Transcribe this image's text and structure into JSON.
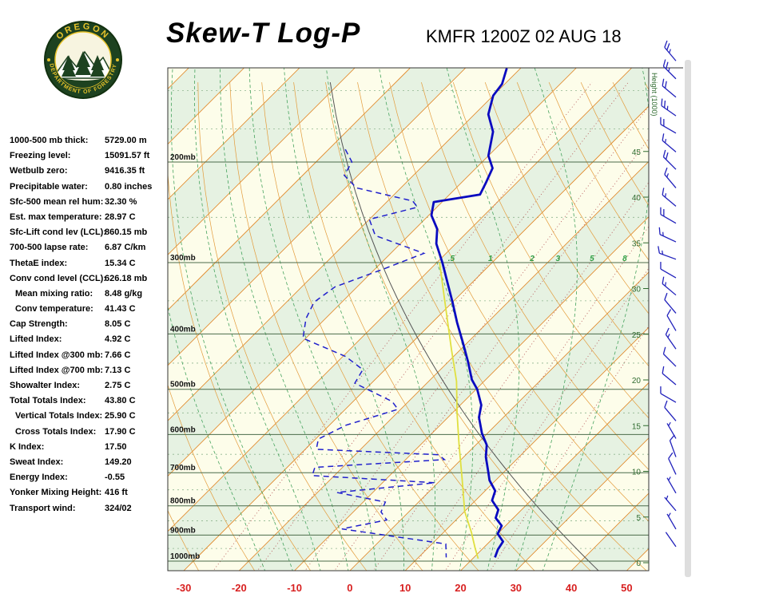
{
  "header": {
    "title": "Skew-T Log-P",
    "station_line": "KMFR 1200Z 02 AUG 18",
    "logo_text_top": "OREGON",
    "logo_text_bottom": "DEPARTMENT OF FORESTRY"
  },
  "indices": [
    {
      "label": "1000-500 mb thick:",
      "value": "5729.00 m",
      "indent": 0
    },
    {
      "label": "Freezing level:",
      "value": "15091.57 ft",
      "indent": 0
    },
    {
      "label": "Wetbulb zero:",
      "value": "9416.35 ft",
      "indent": 0
    },
    {
      "label": "Precipitable water:",
      "value": "0.80 inches",
      "indent": 0
    },
    {
      "label": "Sfc-500 mean rel hum:",
      "value": "32.30 %",
      "indent": 0
    },
    {
      "label": "Est. max temperature:",
      "value": "28.97 C",
      "indent": 0
    },
    {
      "label": "Sfc-Lift cond lev (LCL):",
      "value": "860.15 mb",
      "indent": 0
    },
    {
      "label": "700-500 lapse rate:",
      "value": "6.87 C/km",
      "indent": 0
    },
    {
      "label": "ThetaE index:",
      "value": "15.34 C",
      "indent": 0
    },
    {
      "label": "Conv cond level (CCL):",
      "value": "626.18 mb",
      "indent": 0
    },
    {
      "label": "Mean mixing ratio:",
      "value": "8.48 g/kg",
      "indent": 1
    },
    {
      "label": "Conv temperature:",
      "value": "41.43 C",
      "indent": 1
    },
    {
      "label": "Cap Strength:",
      "value": "8.05 C",
      "indent": 0
    },
    {
      "label": "Lifted Index:",
      "value": "4.92 C",
      "indent": 0
    },
    {
      "label": "Lifted Index @300 mb:",
      "value": "7.66 C",
      "indent": 0
    },
    {
      "label": "Lifted Index @700 mb:",
      "value": "7.13 C",
      "indent": 0
    },
    {
      "label": "Showalter Index:",
      "value": "2.75 C",
      "indent": 0
    },
    {
      "label": "Total Totals Index:",
      "value": "43.80 C",
      "indent": 0
    },
    {
      "label": "Vertical Totals Index:",
      "value": "25.90 C",
      "indent": 1
    },
    {
      "label": "Cross Totals Index:",
      "value": "17.90 C",
      "indent": 1
    },
    {
      "label": "K Index:",
      "value": "17.50",
      "indent": 0
    },
    {
      "label": "Sweat Index:",
      "value": "149.20",
      "indent": 0
    },
    {
      "label": "Energy Index:",
      "value": "-0.55",
      "indent": 0
    },
    {
      "label": "Yonker Mixing Height:",
      "value": "416 ft",
      "indent": 0
    },
    {
      "label": "Transport wind:",
      "value": "324/02",
      "indent": 0
    }
  ],
  "chart_data": {
    "type": "line",
    "subtype": "skew-t log-p atmospheric sounding",
    "station": "KMFR",
    "valid_time": "1200Z 02 AUG 18",
    "pressure_axis_mb": [
      200,
      300,
      400,
      500,
      600,
      700,
      800,
      900,
      1000
    ],
    "pressure_labels": [
      "200mb",
      "300mb",
      "400mb",
      "500mb",
      "600mb",
      "700mb",
      "800mb",
      "900mb",
      "1000mb"
    ],
    "minor_pressure_mb": [
      150,
      175,
      250,
      350,
      450,
      550,
      650,
      750,
      850,
      950
    ],
    "temp_axis_c": [
      -30,
      -20,
      -10,
      0,
      10,
      20,
      30,
      40,
      50
    ],
    "height_axis": {
      "title": "Height (1000)",
      "unit": "kft",
      "ticks": [
        0,
        5,
        10,
        15,
        20,
        25,
        30,
        35,
        40,
        45
      ]
    },
    "mixing_ratio_lines_gkg": [
      0.5,
      1,
      2,
      3,
      5,
      8,
      12,
      20
    ],
    "mixing_ratio_labels": [
      ".5",
      "1",
      "2",
      "3",
      "5",
      "8"
    ],
    "mixing_label_values": [
      0.5,
      1,
      2,
      3,
      5,
      8
    ],
    "isotherm_range_c": [
      -140,
      60
    ],
    "isotherm_step_c": 10,
    "dry_adiabat_range_c": [
      -40,
      140
    ],
    "dry_adiabat_step_c": 10,
    "moist_adiabats_c": [
      -15,
      -10,
      -5,
      0,
      5,
      10,
      15,
      20,
      25,
      30,
      35
    ],
    "conv_temp_adiabat_c": 41.43,
    "temperature_profile_p_t": [
      [
        137,
        -62.5
      ],
      [
        146,
        -60.5
      ],
      [
        153,
        -60.0
      ],
      [
        165,
        -57.5
      ],
      [
        177,
        -53.5
      ],
      [
        195,
        -50.0
      ],
      [
        205,
        -47.0
      ],
      [
        218,
        -45.5
      ],
      [
        228,
        -44.5
      ],
      [
        235,
        -51.5
      ],
      [
        248,
        -49.5
      ],
      [
        262,
        -46.0
      ],
      [
        278,
        -43.5
      ],
      [
        300,
        -39.0
      ],
      [
        325,
        -34.5
      ],
      [
        352,
        -30.0
      ],
      [
        382,
        -25.5
      ],
      [
        413,
        -21.0
      ],
      [
        447,
        -16.5
      ],
      [
        481,
        -12.5
      ],
      [
        500,
        -9.8
      ],
      [
        533,
        -6.2
      ],
      [
        560,
        -4.4
      ],
      [
        597,
        -1.0
      ],
      [
        626,
        2.0
      ],
      [
        657,
        4.0
      ],
      [
        700,
        7.3
      ],
      [
        722,
        8.9
      ],
      [
        753,
        11.8
      ],
      [
        783,
        13.0
      ],
      [
        813,
        15.8
      ],
      [
        840,
        16.8
      ],
      [
        867,
        19.3
      ],
      [
        895,
        20.0
      ],
      [
        924,
        22.4
      ],
      [
        954,
        22.9
      ],
      [
        985,
        23.8
      ]
    ],
    "dewpoint_profile_p_t": [
      [
        190,
        -77.0
      ],
      [
        200,
        -73.5
      ],
      [
        211,
        -72.5
      ],
      [
        222,
        -68.0
      ],
      [
        234,
        -55.5
      ],
      [
        240,
        -53.5
      ],
      [
        252,
        -60.0
      ],
      [
        269,
        -56.0
      ],
      [
        289,
        -44.0
      ],
      [
        308,
        -48.5
      ],
      [
        331,
        -54.0
      ],
      [
        352,
        -55.0
      ],
      [
        376,
        -53.5
      ],
      [
        407,
        -50.5
      ],
      [
        438,
        -39.5
      ],
      [
        462,
        -34.0
      ],
      [
        488,
        -33.0
      ],
      [
        525,
        -23.0
      ],
      [
        542,
        -20.5
      ],
      [
        578,
        -27.0
      ],
      [
        611,
        -29.5
      ],
      [
        637,
        -28.0
      ],
      [
        651,
        -5.0
      ],
      [
        664,
        -3.0
      ],
      [
        685,
        -25.0
      ],
      [
        708,
        -24.0
      ],
      [
        729,
        -0.5
      ],
      [
        758,
        -16.5
      ],
      [
        788,
        -6.0
      ],
      [
        820,
        -5.0
      ],
      [
        847,
        -2.5
      ],
      [
        878,
        -9.0
      ],
      [
        933,
        12.5
      ],
      [
        985,
        15.0
      ]
    ],
    "parcel_trace_p_t": [
      [
        300,
        -39.5
      ],
      [
        331,
        -34.5
      ],
      [
        376,
        -28.0
      ],
      [
        427,
        -21.5
      ],
      [
        484,
        -15.0
      ],
      [
        552,
        -9.0
      ],
      [
        626,
        -3.0
      ],
      [
        715,
        3.5
      ],
      [
        818,
        10.0
      ],
      [
        890,
        15.0
      ],
      [
        948,
        18.5
      ],
      [
        990,
        21.0
      ]
    ],
    "wind_barbs_p_dir_spd": [
      [
        133,
        320,
        25
      ],
      [
        143,
        315,
        25
      ],
      [
        154,
        310,
        20
      ],
      [
        166,
        305,
        25
      ],
      [
        178,
        300,
        20
      ],
      [
        192,
        310,
        15
      ],
      [
        206,
        315,
        20
      ],
      [
        222,
        320,
        15
      ],
      [
        239,
        310,
        15
      ],
      [
        256,
        300,
        20
      ],
      [
        276,
        295,
        15
      ],
      [
        296,
        290,
        15
      ],
      [
        319,
        300,
        10
      ],
      [
        342,
        310,
        15
      ],
      [
        368,
        320,
        10
      ],
      [
        395,
        330,
        10
      ],
      [
        425,
        325,
        15
      ],
      [
        456,
        315,
        10
      ],
      [
        491,
        310,
        10
      ],
      [
        527,
        300,
        10
      ],
      [
        568,
        320,
        10
      ],
      [
        610,
        330,
        5
      ],
      [
        657,
        340,
        10
      ],
      [
        705,
        335,
        10
      ],
      [
        760,
        330,
        5
      ],
      [
        816,
        320,
        5
      ],
      [
        879,
        330,
        5
      ],
      [
        943,
        325,
        2
      ]
    ],
    "colors": {
      "isotherm": "#e0821e",
      "dry_adiabat": "#e39b3b",
      "moist_adiabat": "#46a35e",
      "mixing_ratio": "#b85c5c",
      "band_green": "#e6f2e2",
      "band_cream": "#fdfdea",
      "pressure_line": "#4a6b4a",
      "minor_pressure_line": "#8fb58f",
      "temperature": "#0a0ac0",
      "dewpoint": "#2020cc",
      "parcel": "#e0e040",
      "conv_adiabat": "#555555",
      "wind_barb": "#2020bb",
      "axis_red": "#d82020",
      "height_green": "#2f6b2f",
      "border": "#333333"
    }
  }
}
